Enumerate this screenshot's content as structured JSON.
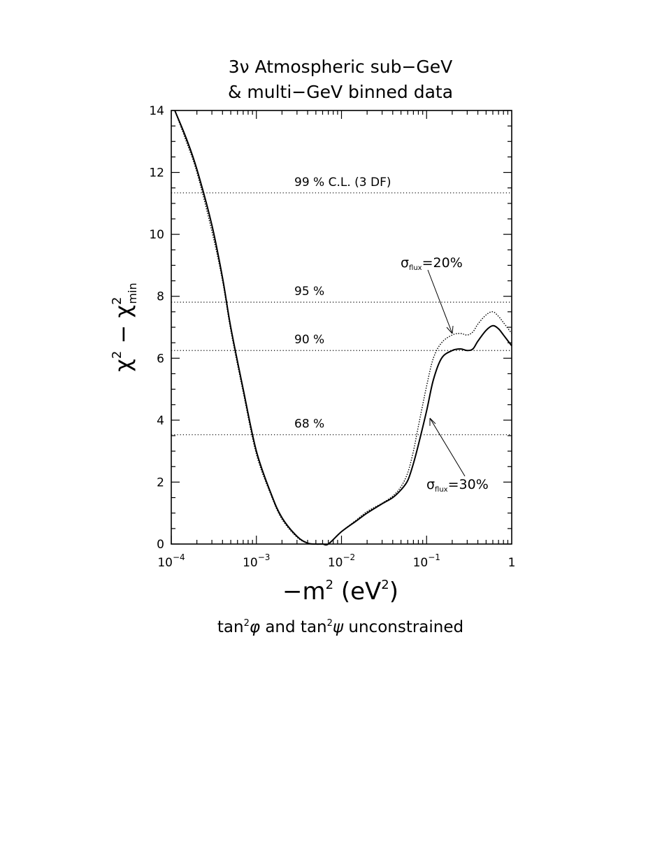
{
  "chart_data": {
    "type": "line",
    "title_line1": "3ν Atmospheric sub−GeV",
    "title_line2": "& multi−GeV binned data",
    "xlabel": "−m² (eV²)",
    "ylabel": "χ² − χ²min",
    "x_scale": "log",
    "xlim": [
      0.0001,
      1
    ],
    "ylim": [
      0,
      14
    ],
    "x_ticks": [
      {
        "value": 0.0001,
        "base": "10",
        "exp": "−4"
      },
      {
        "value": 0.001,
        "base": "10",
        "exp": "−3"
      },
      {
        "value": 0.01,
        "base": "10",
        "exp": "−2"
      },
      {
        "value": 0.1,
        "base": "10",
        "exp": "−1"
      },
      {
        "value": 1,
        "base": "1",
        "exp": ""
      }
    ],
    "y_ticks": [
      "0",
      "2",
      "4",
      "6",
      "8",
      "10",
      "12",
      "14"
    ],
    "reference_lines": [
      {
        "y": 11.34,
        "label": "99 % C.L. (3 DF)"
      },
      {
        "y": 7.81,
        "label": "95 %"
      },
      {
        "y": 6.25,
        "label": "90 %"
      },
      {
        "y": 3.53,
        "label": "68 %"
      }
    ],
    "series": [
      {
        "name": "σflux=30%",
        "style": "solid",
        "x": [
          0.00011,
          0.00015,
          0.0002,
          0.0003,
          0.0004,
          0.0005,
          0.0007,
          0.001,
          0.0015,
          0.002,
          0.003,
          0.004,
          0.005,
          0.006,
          0.007,
          0.01,
          0.015,
          0.02,
          0.03,
          0.04,
          0.05,
          0.06,
          0.07,
          0.08,
          0.1,
          0.12,
          0.15,
          0.2,
          0.25,
          0.3,
          0.35,
          0.4,
          0.5,
          0.6,
          0.7,
          0.8,
          1.0
        ],
        "y": [
          14,
          13.1,
          12.1,
          10.3,
          8.6,
          7.0,
          5.0,
          3.0,
          1.6,
          0.85,
          0.25,
          0.03,
          0.0,
          0.0,
          0.0,
          0.4,
          0.75,
          1.0,
          1.3,
          1.5,
          1.75,
          2.05,
          2.6,
          3.2,
          4.3,
          5.3,
          6.0,
          6.25,
          6.3,
          6.25,
          6.3,
          6.55,
          6.9,
          7.05,
          6.95,
          6.75,
          6.4
        ]
      },
      {
        "name": "σflux=20%",
        "style": "dotted",
        "x": [
          0.00011,
          0.00015,
          0.0002,
          0.0003,
          0.0004,
          0.0005,
          0.0007,
          0.001,
          0.0015,
          0.002,
          0.003,
          0.004,
          0.005,
          0.006,
          0.007,
          0.01,
          0.015,
          0.02,
          0.03,
          0.04,
          0.05,
          0.06,
          0.07,
          0.08,
          0.1,
          0.12,
          0.15,
          0.2,
          0.25,
          0.3,
          0.35,
          0.4,
          0.5,
          0.6,
          0.7,
          0.8,
          1.0
        ],
        "y": [
          14,
          13.0,
          12.0,
          10.1,
          8.5,
          6.9,
          4.9,
          2.9,
          1.55,
          0.8,
          0.22,
          0.03,
          0.0,
          0.0,
          0.0,
          0.4,
          0.78,
          1.05,
          1.32,
          1.55,
          1.85,
          2.3,
          3.0,
          3.8,
          5.1,
          6.0,
          6.5,
          6.75,
          6.8,
          6.75,
          6.85,
          7.1,
          7.4,
          7.5,
          7.35,
          7.15,
          6.8
        ]
      }
    ],
    "annotations": [
      {
        "symbol": "σ",
        "sub": "flux",
        "text": "=20%"
      },
      {
        "symbol": "σ",
        "sub": "flux",
        "text": "=30%"
      }
    ],
    "footnote": {
      "part1": "tan",
      "sup1": "2",
      "sym1": "φ",
      "part2": "  and  tan",
      "sup2": "2",
      "sym2": "ψ",
      "part3": "  unconstrained"
    }
  }
}
